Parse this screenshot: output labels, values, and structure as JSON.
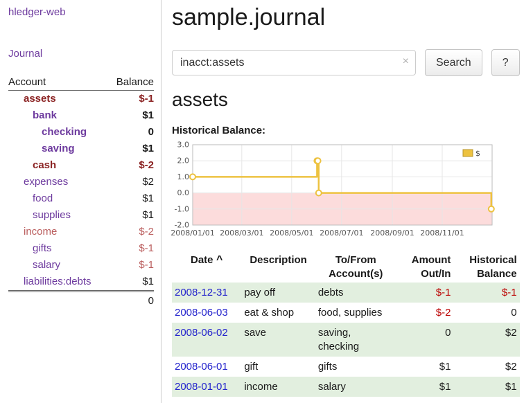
{
  "app": {
    "brand": "hledger-web",
    "journal_link": "Journal"
  },
  "colors": {
    "link_purple": "#6d3a9e",
    "negative_dark": "#8b2323",
    "negative_rose": "#bb5f5f",
    "negative_red": "#bb0000",
    "date_blue": "#2323cc",
    "row_stripe_green": "#e2efdf",
    "chart_line_gold": "#edc240",
    "chart_negative_bg": "#fcdcdc"
  },
  "sidebar": {
    "col_account": "Account",
    "col_balance": "Balance",
    "accounts": [
      {
        "name": "assets",
        "balance": "$-1",
        "indent": 1,
        "bold": true,
        "name_color": "maroon",
        "balance_color": "maroon"
      },
      {
        "name": "bank",
        "balance": "$1",
        "indent": 2,
        "bold": true,
        "name_color": "purple",
        "balance_color": "black"
      },
      {
        "name": "checking",
        "balance": "0",
        "indent": 3,
        "bold": true,
        "name_color": "purple",
        "balance_color": "black"
      },
      {
        "name": "saving",
        "balance": "$1",
        "indent": 3,
        "bold": true,
        "name_color": "purple",
        "balance_color": "black"
      },
      {
        "name": "cash",
        "balance": "$-2",
        "indent": 2,
        "bold": true,
        "name_color": "maroon",
        "balance_color": "maroon"
      },
      {
        "name": "expenses",
        "balance": "$2",
        "indent": 1,
        "bold": false,
        "name_color": "purple",
        "balance_color": "black"
      },
      {
        "name": "food",
        "balance": "$1",
        "indent": 2,
        "bold": false,
        "name_color": "purple",
        "balance_color": "black"
      },
      {
        "name": "supplies",
        "balance": "$1",
        "indent": 2,
        "bold": false,
        "name_color": "purple",
        "balance_color": "black"
      },
      {
        "name": "income",
        "balance": "$-2",
        "indent": 1,
        "bold": false,
        "name_color": "rose",
        "balance_color": "rose"
      },
      {
        "name": "gifts",
        "balance": "$-1",
        "indent": 2,
        "bold": false,
        "name_color": "purple",
        "balance_color": "rose"
      },
      {
        "name": "salary",
        "balance": "$-1",
        "indent": 2,
        "bold": false,
        "name_color": "purple",
        "balance_color": "rose"
      },
      {
        "name": "liabilities:debts",
        "balance": "$1",
        "indent": 1,
        "bold": false,
        "name_color": "purple",
        "balance_color": "black"
      }
    ],
    "total": "0"
  },
  "main": {
    "title": "sample.journal",
    "search": {
      "value": "inacct:assets",
      "clear_icon": "×",
      "button_label": "Search",
      "help_label": "?"
    },
    "account_heading": "assets",
    "register": {
      "headers": [
        {
          "key": "date",
          "label": "Date",
          "sort": "^",
          "align": "left"
        },
        {
          "key": "description",
          "label": "Description",
          "align": "left"
        },
        {
          "key": "accounts",
          "label": "To/From Account(s)",
          "align": "left"
        },
        {
          "key": "amount",
          "label": "Amount Out/In",
          "align": "right"
        },
        {
          "key": "balance",
          "label": "Historical Balance",
          "align": "right"
        }
      ],
      "rows": [
        {
          "date": "2008-12-31",
          "description": "pay off",
          "accounts": "debts",
          "amount": "$-1",
          "amount_negative": true,
          "balance": "$-1",
          "balance_negative": true
        },
        {
          "date": "2008-06-03",
          "description": "eat & shop",
          "accounts": "food, supplies",
          "amount": "$-2",
          "amount_negative": true,
          "balance": "0",
          "balance_negative": false
        },
        {
          "date": "2008-06-02",
          "description": "save",
          "accounts": "saving, checking",
          "amount": "0",
          "amount_negative": false,
          "balance": "$2",
          "balance_negative": false
        },
        {
          "date": "2008-06-01",
          "description": "gift",
          "accounts": "gifts",
          "amount": "$1",
          "amount_negative": false,
          "balance": "$2",
          "balance_negative": false
        },
        {
          "date": "2008-01-01",
          "description": "income",
          "accounts": "salary",
          "amount": "$1",
          "amount_negative": false,
          "balance": "$1",
          "balance_negative": false
        }
      ]
    }
  },
  "chart_data": {
    "type": "line",
    "title": "Historical Balance:",
    "step": true,
    "legend": [
      {
        "name": "$",
        "color": "#edc240"
      }
    ],
    "ylim": [
      -2,
      3
    ],
    "y_ticks": [
      "3.0",
      "2.0",
      "1.0",
      "0.0",
      "-1.0",
      "-2.0"
    ],
    "x_domain_days": [
      0,
      366
    ],
    "x_ticks": [
      {
        "day": 0,
        "label": "2008/01/01"
      },
      {
        "day": 60,
        "label": "2008/03/01"
      },
      {
        "day": 121,
        "label": "2008/05/01"
      },
      {
        "day": 182,
        "label": "2008/07/01"
      },
      {
        "day": 244,
        "label": "2008/09/01"
      },
      {
        "day": 305,
        "label": "2008/11/01"
      }
    ],
    "points": [
      {
        "date": "2008-01-01",
        "day": 0,
        "value": 1
      },
      {
        "date": "2008-06-01",
        "day": 152,
        "value": 2
      },
      {
        "date": "2008-06-02",
        "day": 153,
        "value": 2
      },
      {
        "date": "2008-06-03",
        "day": 154,
        "value": 0
      },
      {
        "date": "2008-12-31",
        "day": 365,
        "value": -1
      }
    ],
    "negative_region": {
      "from": 0,
      "to": -2,
      "color": "#fcdcdc"
    },
    "line_color": "#edc240",
    "marker_fill": "#ffffff",
    "grid_color": "#e6e6e6",
    "border_color": "#bbbbbb"
  }
}
